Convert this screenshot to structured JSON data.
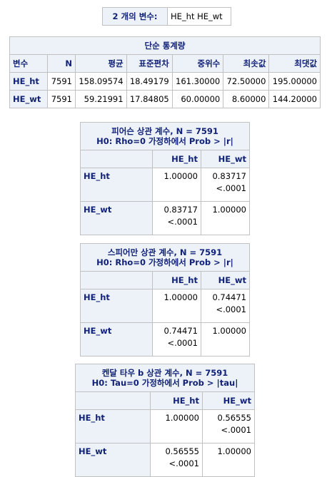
{
  "variables": {
    "label": "2 개의 변수:",
    "value": "HE_ht HE_wt"
  },
  "simple_stats": {
    "title": "단순 통계량",
    "headers": [
      "변수",
      "N",
      "평균",
      "표준편차",
      "중위수",
      "최솟값",
      "최댓값"
    ],
    "rows": [
      [
        "HE_ht",
        "7591",
        "158.09574",
        "18.49179",
        "161.30000",
        "72.50000",
        "195.00000"
      ],
      [
        "HE_wt",
        "7591",
        "59.21991",
        "17.84805",
        "60.00000",
        "8.60000",
        "144.20000"
      ]
    ]
  },
  "pearson": {
    "title1": "피어슨 상관 계수, N = 7591",
    "title2": "H0: Rho=0 가정하에서 Prob > |r|",
    "cols": [
      "HE_ht",
      "HE_wt"
    ],
    "rows": [
      {
        "name": "HE_ht",
        "cells": [
          {
            "v": "1.00000",
            "p": ""
          },
          {
            "v": "0.83717",
            "p": "<.0001"
          }
        ]
      },
      {
        "name": "HE_wt",
        "cells": [
          {
            "v": "0.83717",
            "p": "<.0001"
          },
          {
            "v": "1.00000",
            "p": ""
          }
        ]
      }
    ]
  },
  "spearman": {
    "title1": "스피어만 상관 계수, N = 7591",
    "title2": "H0: Rho=0 가정하에서 Prob > |r|",
    "cols": [
      "HE_ht",
      "HE_wt"
    ],
    "rows": [
      {
        "name": "HE_ht",
        "cells": [
          {
            "v": "1.00000",
            "p": ""
          },
          {
            "v": "0.74471",
            "p": "<.0001"
          }
        ]
      },
      {
        "name": "HE_wt",
        "cells": [
          {
            "v": "0.74471",
            "p": "<.0001"
          },
          {
            "v": "1.00000",
            "p": ""
          }
        ]
      }
    ]
  },
  "kendall": {
    "title1": "켄달 타우 b 상관 계수, N = 7591",
    "title2": "H0: Tau=0 가정하에서 Prob > |tau|",
    "cols": [
      "HE_ht",
      "HE_wt"
    ],
    "rows": [
      {
        "name": "HE_ht",
        "cells": [
          {
            "v": "1.00000",
            "p": ""
          },
          {
            "v": "0.56555",
            "p": "<.0001"
          }
        ]
      },
      {
        "name": "HE_wt",
        "cells": [
          {
            "v": "0.56555",
            "p": "<.0001"
          },
          {
            "v": "1.00000",
            "p": ""
          }
        ]
      }
    ]
  }
}
